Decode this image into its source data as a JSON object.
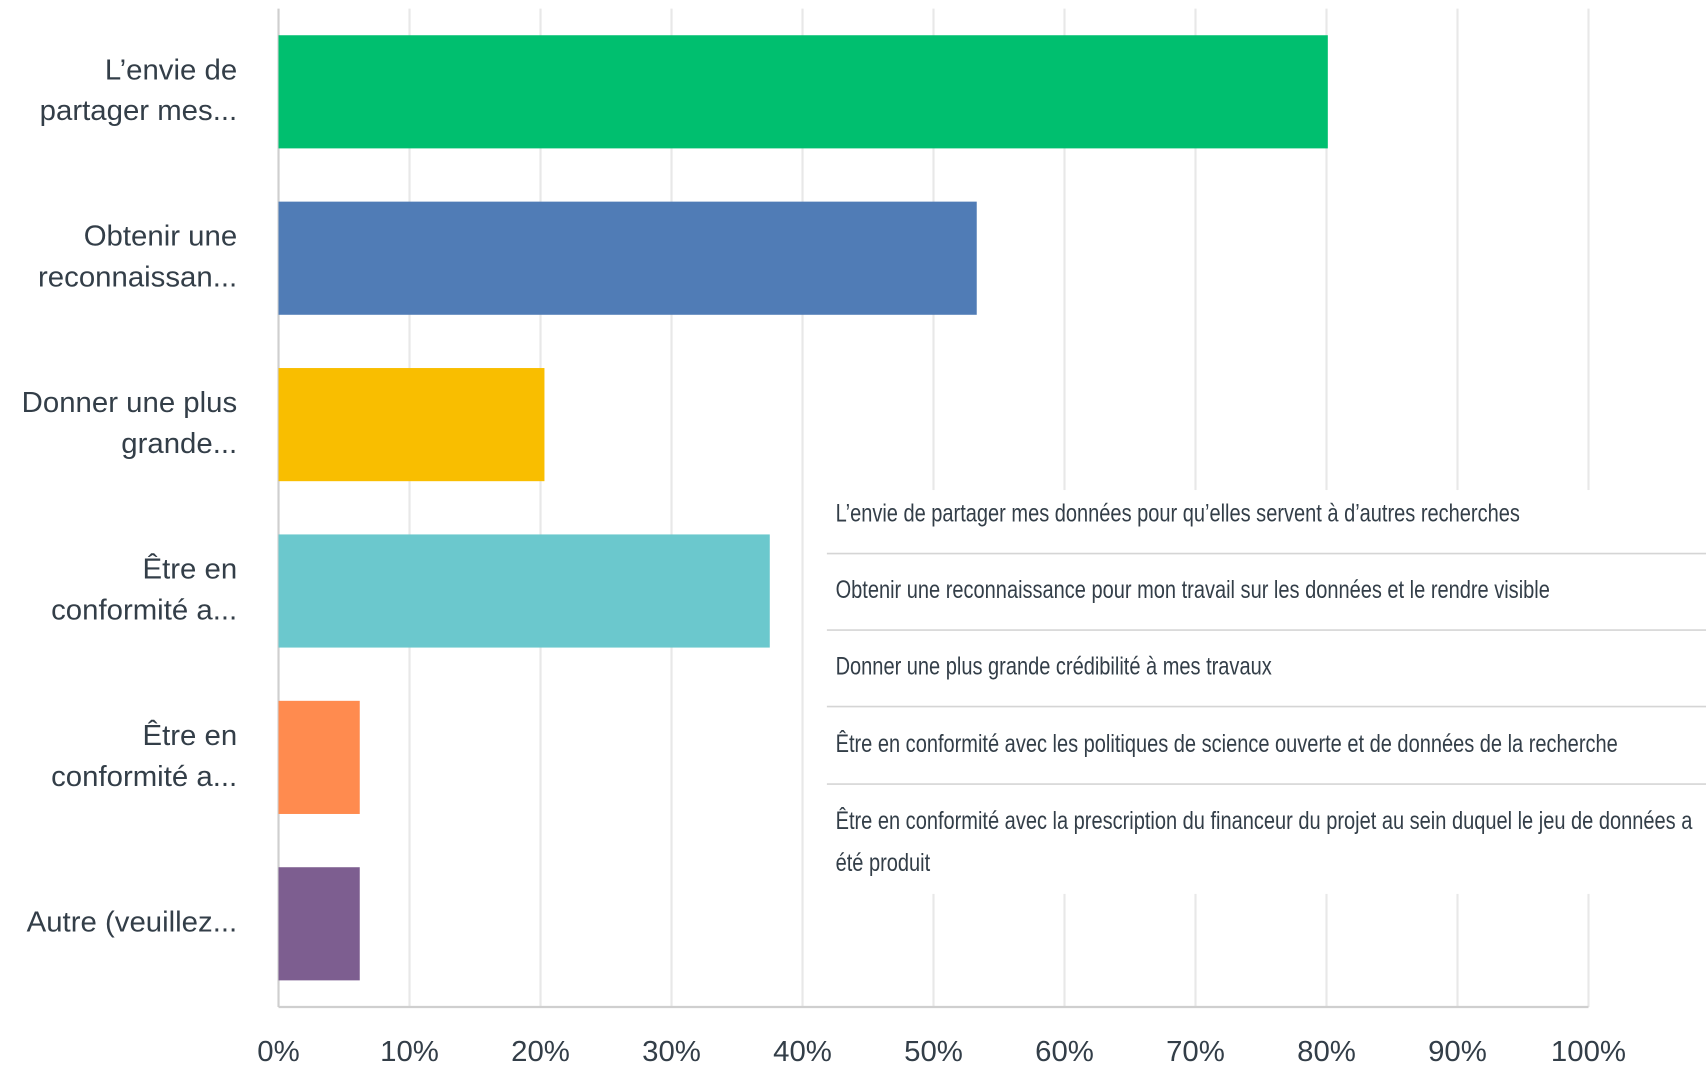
{
  "chart_data": {
    "type": "barh",
    "categories": [
      "L’envie de partager mes...",
      "Obtenir une reconnaissan...",
      "Donner une plus grande...",
      "Être en conformité a...",
      "Être en conformité a...",
      "Autre (veuillez..."
    ],
    "values": [
      80.1,
      53.3,
      20.3,
      37.5,
      6.2,
      6.2
    ],
    "colors": [
      "#00bf6f",
      "#507cb6",
      "#f9be00",
      "#6bc8cd",
      "#ff8b4f",
      "#7d5e90"
    ],
    "xlim": [
      0,
      100
    ],
    "xticks": [
      {
        "value": 0,
        "label": "0%"
      },
      {
        "value": 10,
        "label": "10%"
      },
      {
        "value": 20,
        "label": "20%"
      },
      {
        "value": 30,
        "label": "30%"
      },
      {
        "value": 40,
        "label": "40%"
      },
      {
        "value": 50,
        "label": "50%"
      },
      {
        "value": 60,
        "label": "60%"
      },
      {
        "value": 70,
        "label": "70%"
      },
      {
        "value": 80,
        "label": "80%"
      },
      {
        "value": 90,
        "label": "90%"
      },
      {
        "value": 100,
        "label": "100%"
      }
    ],
    "grid": true,
    "tooltip": [
      "L’envie de partager mes données pour qu’elles servent à d’autres recherches",
      "Obtenir une reconnaissance pour mon travail sur les données et le rendre visible",
      "Donner une plus grande crédibilité à mes travaux",
      "Être en conformité avec les politiques de science ouverte et de données de la recherche",
      "Être en conformité avec la prescription du financeur du projet au sein duquel le jeu de données a été produit"
    ]
  }
}
